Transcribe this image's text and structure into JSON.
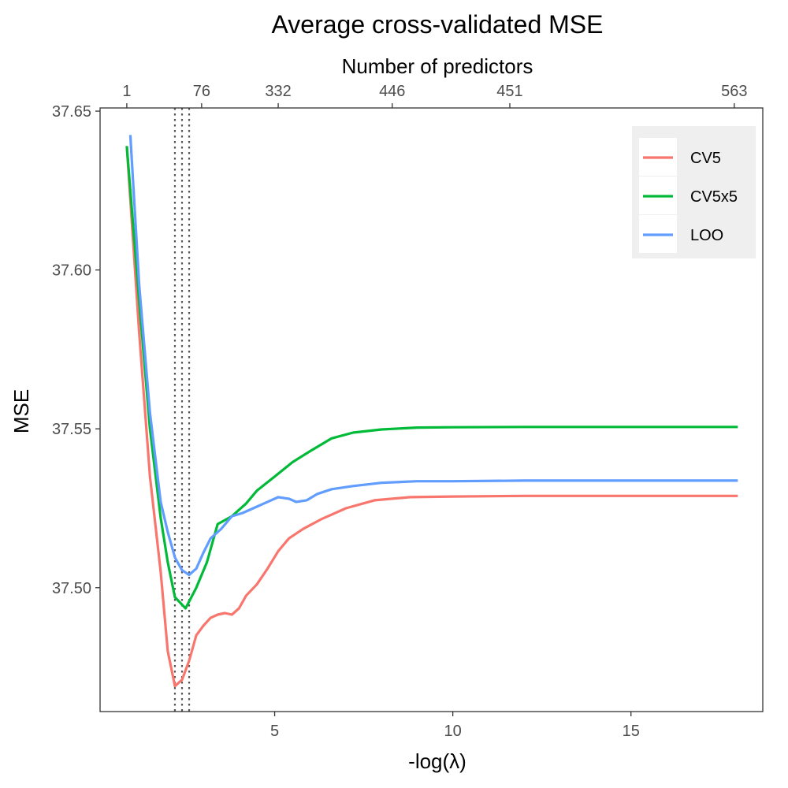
{
  "chart_data": {
    "type": "line",
    "title": "Average cross-validated MSE",
    "xlabel": "-log(λ)",
    "ylabel": "MSE",
    "top_axis_label": "Number of predictors",
    "xlim": [
      0.1,
      18.7
    ],
    "ylim": [
      37.461,
      37.651
    ],
    "x_ticks": [
      5,
      10,
      15
    ],
    "x_tick_labels": [
      "5",
      "10",
      "15"
    ],
    "y_ticks": [
      37.5,
      37.55,
      37.6,
      37.65
    ],
    "y_tick_labels": [
      "37.50",
      "37.55",
      "37.60",
      "37.65"
    ],
    "top_ticks": [
      {
        "x": 0.85,
        "label": "1"
      },
      {
        "x": 2.95,
        "label": "76"
      },
      {
        "x": 5.1,
        "label": "332"
      },
      {
        "x": 8.3,
        "label": "446"
      },
      {
        "x": 11.6,
        "label": "451"
      },
      {
        "x": 17.9,
        "label": "563"
      }
    ],
    "vlines": [
      2.2,
      2.4,
      2.6
    ],
    "grid": false,
    "legend_position": "top-right",
    "series": [
      {
        "name": "CV5",
        "color": "#F8766D",
        "points": [
          [
            0.85,
            37.639
          ],
          [
            1.2,
            37.58
          ],
          [
            1.5,
            37.535
          ],
          [
            1.8,
            37.505
          ],
          [
            2.0,
            37.48
          ],
          [
            2.2,
            37.469
          ],
          [
            2.4,
            37.471
          ],
          [
            2.6,
            37.477
          ],
          [
            2.8,
            37.485
          ],
          [
            3.0,
            37.488
          ],
          [
            3.2,
            37.4905
          ],
          [
            3.4,
            37.4915
          ],
          [
            3.6,
            37.492
          ],
          [
            3.8,
            37.4915
          ],
          [
            4.0,
            37.4935
          ],
          [
            4.2,
            37.4975
          ],
          [
            4.5,
            37.501
          ],
          [
            4.8,
            37.506
          ],
          [
            5.1,
            37.5115
          ],
          [
            5.4,
            37.5155
          ],
          [
            5.8,
            37.5185
          ],
          [
            6.3,
            37.5215
          ],
          [
            7.0,
            37.525
          ],
          [
            7.8,
            37.5275
          ],
          [
            8.8,
            37.5285
          ],
          [
            10.0,
            37.5287
          ],
          [
            12.0,
            37.5289
          ],
          [
            15.0,
            37.5289
          ],
          [
            18.0,
            37.5289
          ]
        ]
      },
      {
        "name": "CV5x5",
        "color": "#00BA38",
        "points": [
          [
            0.85,
            37.639
          ],
          [
            1.2,
            37.59
          ],
          [
            1.5,
            37.55
          ],
          [
            1.8,
            37.522
          ],
          [
            2.0,
            37.508
          ],
          [
            2.2,
            37.497
          ],
          [
            2.5,
            37.4935
          ],
          [
            2.8,
            37.5
          ],
          [
            3.1,
            37.508
          ],
          [
            3.4,
            37.52
          ],
          [
            3.8,
            37.5225
          ],
          [
            4.2,
            37.5265
          ],
          [
            4.5,
            37.5305
          ],
          [
            5.0,
            37.535
          ],
          [
            5.5,
            37.5395
          ],
          [
            6.0,
            37.543
          ],
          [
            6.6,
            37.547
          ],
          [
            7.2,
            37.5488
          ],
          [
            8.0,
            37.5498
          ],
          [
            9.0,
            37.5504
          ],
          [
            10.0,
            37.5505
          ],
          [
            12.0,
            37.5506
          ],
          [
            15.0,
            37.5506
          ],
          [
            18.0,
            37.5506
          ]
        ]
      },
      {
        "name": "LOO",
        "color": "#619CFF",
        "points": [
          [
            0.95,
            37.6425
          ],
          [
            1.2,
            37.595
          ],
          [
            1.5,
            37.555
          ],
          [
            1.8,
            37.527
          ],
          [
            2.0,
            37.5175
          ],
          [
            2.2,
            37.5095
          ],
          [
            2.4,
            37.5055
          ],
          [
            2.6,
            37.504
          ],
          [
            2.8,
            37.506
          ],
          [
            3.0,
            37.511
          ],
          [
            3.2,
            37.5155
          ],
          [
            3.5,
            37.5185
          ],
          [
            3.8,
            37.5225
          ],
          [
            4.1,
            37.5235
          ],
          [
            4.4,
            37.525
          ],
          [
            4.8,
            37.527
          ],
          [
            5.1,
            37.5285
          ],
          [
            5.4,
            37.528
          ],
          [
            5.6,
            37.527
          ],
          [
            5.9,
            37.5275
          ],
          [
            6.2,
            37.5295
          ],
          [
            6.6,
            37.531
          ],
          [
            7.2,
            37.532
          ],
          [
            8.0,
            37.533
          ],
          [
            9.0,
            37.5335
          ],
          [
            10.0,
            37.5335
          ],
          [
            12.0,
            37.5337
          ],
          [
            15.0,
            37.5337
          ],
          [
            18.0,
            37.5337
          ]
        ]
      }
    ]
  }
}
